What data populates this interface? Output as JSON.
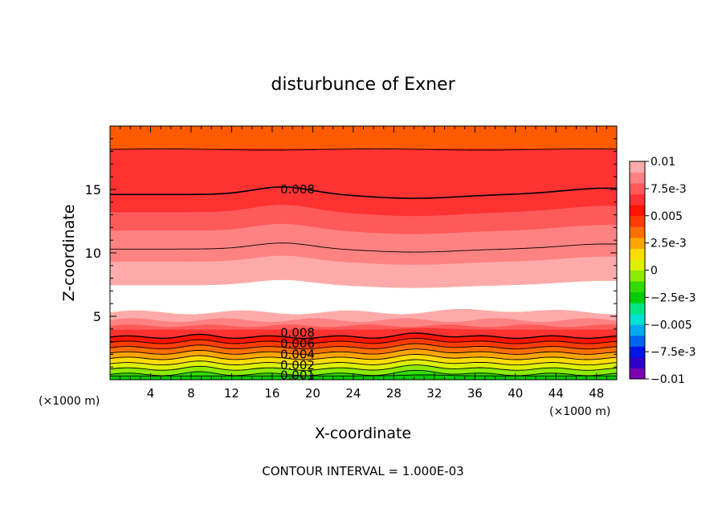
{
  "chart_data": {
    "type": "heatmap",
    "title": "disturbunce of Exner",
    "xlabel": "X-coordinate",
    "ylabel": "Z-coordinate",
    "x_unit_left": "(×1000 m)",
    "x_unit_right": "(×1000 m)",
    "footer": "CONTOUR INTERVAL = 1.000E-03",
    "xlim": [
      0,
      50
    ],
    "ylim": [
      0,
      20
    ],
    "x_ticks": [
      4,
      8,
      12,
      16,
      20,
      24,
      28,
      32,
      36,
      40,
      44,
      48
    ],
    "y_ticks": [
      5,
      10,
      15
    ],
    "colorbar": {
      "range": [
        -0.01,
        0.01
      ],
      "labels": [
        {
          "value": 0.01,
          "text": "0.01"
        },
        {
          "value": 0.0075,
          "text": "7.5e-3"
        },
        {
          "value": 0.005,
          "text": "0.005"
        },
        {
          "value": 0.0025,
          "text": "2.5e-3"
        },
        {
          "value": 0,
          "text": "0"
        },
        {
          "value": -0.0025,
          "text": "-2.5e-3"
        },
        {
          "value": -0.005,
          "text": "-0.005"
        },
        {
          "value": -0.0075,
          "text": "-7.5e-3"
        },
        {
          "value": -0.01,
          "text": "-0.01"
        }
      ],
      "colors": [
        "#7b00b4",
        "#2d00c8",
        "#0014e6",
        "#0064f0",
        "#00aaf0",
        "#00e1d2",
        "#00e682",
        "#00cc00",
        "#32dc00",
        "#8ceb00",
        "#dcf000",
        "#ffdc00",
        "#ffa500",
        "#ff6e00",
        "#ff3c00",
        "#ff1400",
        "#ff3232",
        "#ff5a5a",
        "#ff8282",
        "#ffaaaa"
      ]
    },
    "fill_levels": [
      {
        "level": 0.0,
        "color": "#00cc00"
      },
      {
        "level": 0.001,
        "color": "#32dc00"
      },
      {
        "level": 0.002,
        "color": "#8ceb00"
      },
      {
        "level": 0.003,
        "color": "#dcf000"
      },
      {
        "level": 0.004,
        "color": "#ffdc00"
      },
      {
        "level": 0.005,
        "color": "#ffa500"
      },
      {
        "level": 0.006,
        "color": "#ff6e00"
      },
      {
        "level": 0.007,
        "color": "#ff3c00"
      },
      {
        "level": 0.008,
        "color": "#ff1400"
      },
      {
        "level": 0.0085,
        "color": "#ff3232"
      },
      {
        "level": 0.009,
        "color": "#ff5a5a"
      },
      {
        "level": 0.0095,
        "color": "#ff8282"
      },
      {
        "level": 0.00975,
        "color": "#ffaaaa"
      },
      {
        "level": 0.01,
        "color": "#ffffff"
      }
    ],
    "contour_labels": [
      {
        "text": "0.008",
        "x": 18.5,
        "z": 15.0
      },
      {
        "text": "0.008",
        "x": 18.5,
        "z": 3.7
      },
      {
        "text": "0.006",
        "x": 18.5,
        "z": 2.85
      },
      {
        "text": "0.004",
        "x": 18.5,
        "z": 2.0
      },
      {
        "text": "0.002",
        "x": 18.5,
        "z": 1.15
      },
      {
        "text": "0.001",
        "x": 18.5,
        "z": 0.35
      }
    ]
  }
}
